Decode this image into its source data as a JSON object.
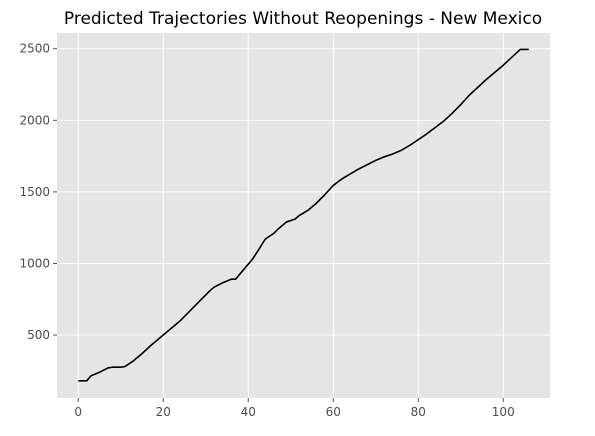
{
  "chart_data": {
    "type": "line",
    "title": "Predicted Trajectories Without Reopenings - New Mexico",
    "xlabel": "",
    "ylabel": "",
    "xlim": [
      -5,
      111
    ],
    "ylim": [
      60,
      2610
    ],
    "x_ticks": [
      0,
      20,
      40,
      60,
      80,
      100
    ],
    "y_ticks": [
      500,
      1000,
      1500,
      2000,
      2500
    ],
    "grid": true,
    "legend": "none",
    "colors": {
      "background": "#e5e5e5",
      "grid": "#ffffff",
      "line": "#000000"
    },
    "series": [
      {
        "x": [
          0,
          2,
          3,
          5,
          7,
          8,
          10,
          11,
          13,
          15,
          17,
          18,
          20,
          22,
          24,
          25,
          27,
          29,
          31,
          32,
          34,
          36,
          37,
          39,
          41,
          42,
          44,
          46,
          47,
          49,
          51,
          52,
          54,
          56,
          58,
          60,
          62,
          64,
          66,
          68,
          70,
          72,
          74,
          76,
          78,
          80,
          82,
          84,
          86,
          88,
          90,
          92,
          94,
          96,
          98,
          100,
          102,
          104,
          106
        ],
        "y": [
          180,
          180,
          215,
          240,
          270,
          275,
          275,
          280,
          320,
          370,
          425,
          450,
          500,
          550,
          600,
          630,
          690,
          750,
          810,
          835,
          865,
          890,
          890,
          960,
          1030,
          1075,
          1170,
          1210,
          1240,
          1290,
          1310,
          1335,
          1370,
          1420,
          1480,
          1545,
          1590,
          1625,
          1660,
          1690,
          1720,
          1745,
          1765,
          1790,
          1825,
          1865,
          1905,
          1950,
          1995,
          2050,
          2110,
          2175,
          2230,
          2285,
          2335,
          2385,
          2440,
          2495,
          2495
        ]
      }
    ]
  }
}
